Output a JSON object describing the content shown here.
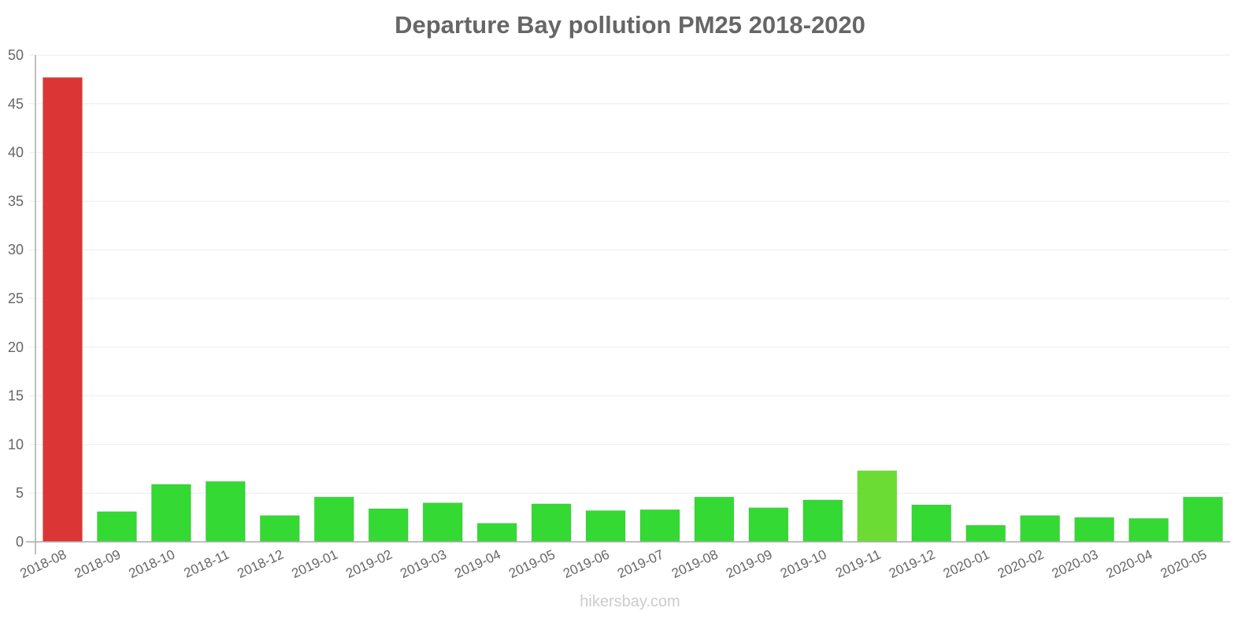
{
  "chart_data": {
    "type": "bar",
    "title": "Departure Bay pollution PM25 2018-2020",
    "xlabel": "",
    "ylabel": "",
    "ylim": [
      0,
      50
    ],
    "yticks": [
      0,
      5,
      10,
      15,
      20,
      25,
      30,
      35,
      40,
      45,
      50
    ],
    "grid": true,
    "legend": null,
    "categories": [
      "2018-08",
      "2018-09",
      "2018-10",
      "2018-11",
      "2018-12",
      "2019-01",
      "2019-02",
      "2019-03",
      "2019-04",
      "2019-05",
      "2019-06",
      "2019-07",
      "2019-08",
      "2019-09",
      "2019-10",
      "2019-11",
      "2019-12",
      "2020-01",
      "2020-02",
      "2020-03",
      "2020-04",
      "2020-05"
    ],
    "values": [
      47.7,
      3.1,
      5.9,
      6.2,
      2.7,
      4.6,
      3.4,
      4.0,
      1.9,
      3.9,
      3.2,
      3.3,
      4.6,
      3.5,
      4.3,
      7.3,
      3.8,
      1.7,
      2.7,
      2.5,
      2.4,
      4.6
    ],
    "colors": [
      "#dc3535",
      "#34d934",
      "#34d934",
      "#34d934",
      "#34d934",
      "#34d934",
      "#34d934",
      "#34d934",
      "#34d934",
      "#34d934",
      "#34d934",
      "#34d934",
      "#34d934",
      "#34d934",
      "#34d934",
      "#6bdc34",
      "#34d934",
      "#34d934",
      "#34d934",
      "#34d934",
      "#34d934",
      "#34d934"
    ]
  },
  "watermark": "hikersbay.com",
  "colors": {
    "text": "#666666",
    "grid": "#eeeeee",
    "axis": "#aaaaaa",
    "watermark": "#cccccc"
  }
}
